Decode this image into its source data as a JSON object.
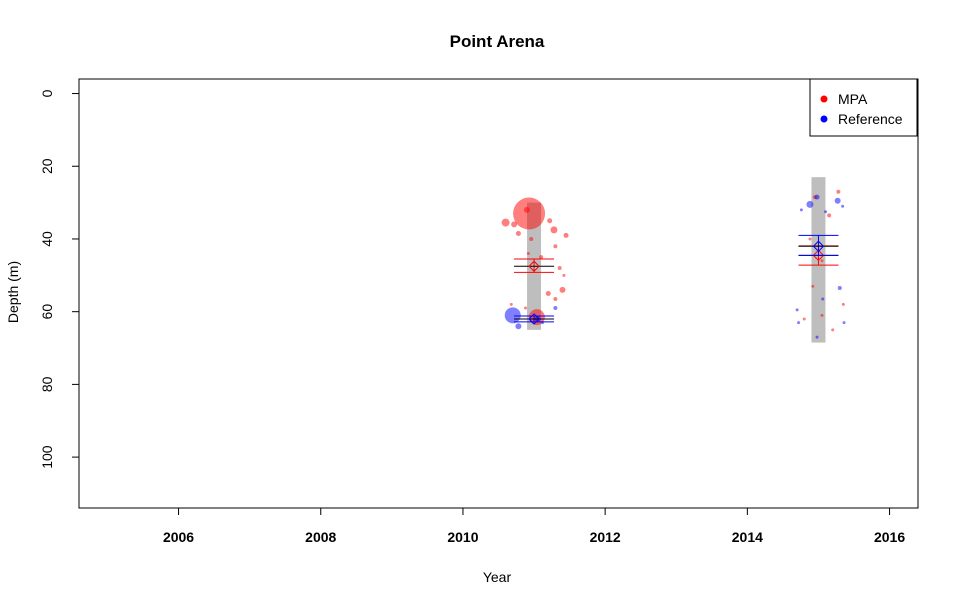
{
  "chart_data": {
    "type": "scatter",
    "title": "Point Arena",
    "xlabel": "Year",
    "ylabel": "Depth (m)",
    "xlim": [
      2004.6,
      2016.4
    ],
    "ylim": [
      -4,
      114
    ],
    "y_reversed": true,
    "xticks": [
      2006,
      2008,
      2010,
      2012,
      2014,
      2016
    ],
    "yticks": [
      0,
      20,
      40,
      60,
      80,
      100
    ],
    "legend": {
      "position": "top-right",
      "entries": [
        {
          "name": "MPA",
          "color": "#ff0000"
        },
        {
          "name": "Reference",
          "color": "#0000ff"
        }
      ]
    },
    "depth_ranges": [
      {
        "x": 2011.0,
        "y_min": 30,
        "y_max": 65,
        "color": "#bebebe"
      },
      {
        "x": 2015.0,
        "y_min": 23,
        "y_max": 68.5,
        "color": "#bebebe"
      }
    ],
    "series": [
      {
        "name": "MPA",
        "color": "#ff0000",
        "points": [
          {
            "x": 2010.93,
            "y": 33,
            "r": 16
          },
          {
            "x": 2010.9,
            "y": 32,
            "r": 3
          },
          {
            "x": 2011.04,
            "y": 61.5,
            "r": 8
          },
          {
            "x": 2010.6,
            "y": 35.5,
            "r": 4
          },
          {
            "x": 2010.72,
            "y": 36,
            "r": 3
          },
          {
            "x": 2010.78,
            "y": 38.5,
            "r": 2.5
          },
          {
            "x": 2011.28,
            "y": 37.5,
            "r": 3.5
          },
          {
            "x": 2011.22,
            "y": 35,
            "r": 2.5
          },
          {
            "x": 2011.45,
            "y": 39,
            "r": 2.5
          },
          {
            "x": 2011.3,
            "y": 42,
            "r": 2
          },
          {
            "x": 2011.36,
            "y": 48,
            "r": 2
          },
          {
            "x": 2011.42,
            "y": 50,
            "r": 1.5
          },
          {
            "x": 2011.2,
            "y": 55,
            "r": 2.5
          },
          {
            "x": 2011.4,
            "y": 54,
            "r": 3
          },
          {
            "x": 2011.3,
            "y": 56.5,
            "r": 2
          },
          {
            "x": 2010.88,
            "y": 59,
            "r": 1.5
          },
          {
            "x": 2010.68,
            "y": 58,
            "r": 1.5
          },
          {
            "x": 2010.96,
            "y": 40,
            "r": 2
          },
          {
            "x": 2010.92,
            "y": 44,
            "r": 1.5
          },
          {
            "x": 2011.1,
            "y": 45,
            "r": 2
          },
          {
            "x": 2014.95,
            "y": 28.5,
            "r": 2
          },
          {
            "x": 2015.28,
            "y": 27,
            "r": 2
          },
          {
            "x": 2015.15,
            "y": 33.5,
            "r": 2
          },
          {
            "x": 2014.88,
            "y": 40,
            "r": 1.5
          },
          {
            "x": 2015.05,
            "y": 46,
            "r": 1.5
          },
          {
            "x": 2014.92,
            "y": 53,
            "r": 1.5
          },
          {
            "x": 2015.05,
            "y": 61,
            "r": 1.5
          },
          {
            "x": 2014.8,
            "y": 62,
            "r": 1.5
          },
          {
            "x": 2015.2,
            "y": 65,
            "r": 1.5
          },
          {
            "x": 2015.35,
            "y": 58,
            "r": 1.5
          }
        ],
        "mean": {
          "x": 2011.0,
          "y": 47.5
        },
        "error_bars": [
          45.5,
          49.2
        ],
        "mean_2015": {
          "x": 2015.0,
          "y": 44.5
        },
        "error_bars_2015": [
          41.9,
          47.2
        ]
      },
      {
        "name": "Reference",
        "color": "#0000ff",
        "points": [
          {
            "x": 2010.7,
            "y": 61,
            "r": 8
          },
          {
            "x": 2010.78,
            "y": 64,
            "r": 3
          },
          {
            "x": 2011.05,
            "y": 62,
            "r": 3
          },
          {
            "x": 2011.3,
            "y": 59,
            "r": 2
          },
          {
            "x": 2011.12,
            "y": 63,
            "r": 1.5
          },
          {
            "x": 2014.88,
            "y": 30.5,
            "r": 3.5
          },
          {
            "x": 2015.27,
            "y": 29.5,
            "r": 3
          },
          {
            "x": 2014.98,
            "y": 28.5,
            "r": 2.5
          },
          {
            "x": 2015.1,
            "y": 32.5,
            "r": 1.5
          },
          {
            "x": 2014.76,
            "y": 32,
            "r": 1.5
          },
          {
            "x": 2015.34,
            "y": 31,
            "r": 1.5
          },
          {
            "x": 2015.3,
            "y": 53.5,
            "r": 2
          },
          {
            "x": 2015.06,
            "y": 56.5,
            "r": 1.5
          },
          {
            "x": 2014.72,
            "y": 63,
            "r": 1.5
          },
          {
            "x": 2015.36,
            "y": 63,
            "r": 1.5
          },
          {
            "x": 2014.98,
            "y": 67,
            "r": 1.5
          },
          {
            "x": 2014.7,
            "y": 59.5,
            "r": 1.5
          }
        ],
        "mean": {
          "x": 2011.0,
          "y": 62
        },
        "error_bars": [
          61.2,
          62.8
        ],
        "mean_2015": {
          "x": 2015.0,
          "y": 42
        },
        "error_bars_2015": [
          39,
          44.5
        ]
      }
    ]
  }
}
